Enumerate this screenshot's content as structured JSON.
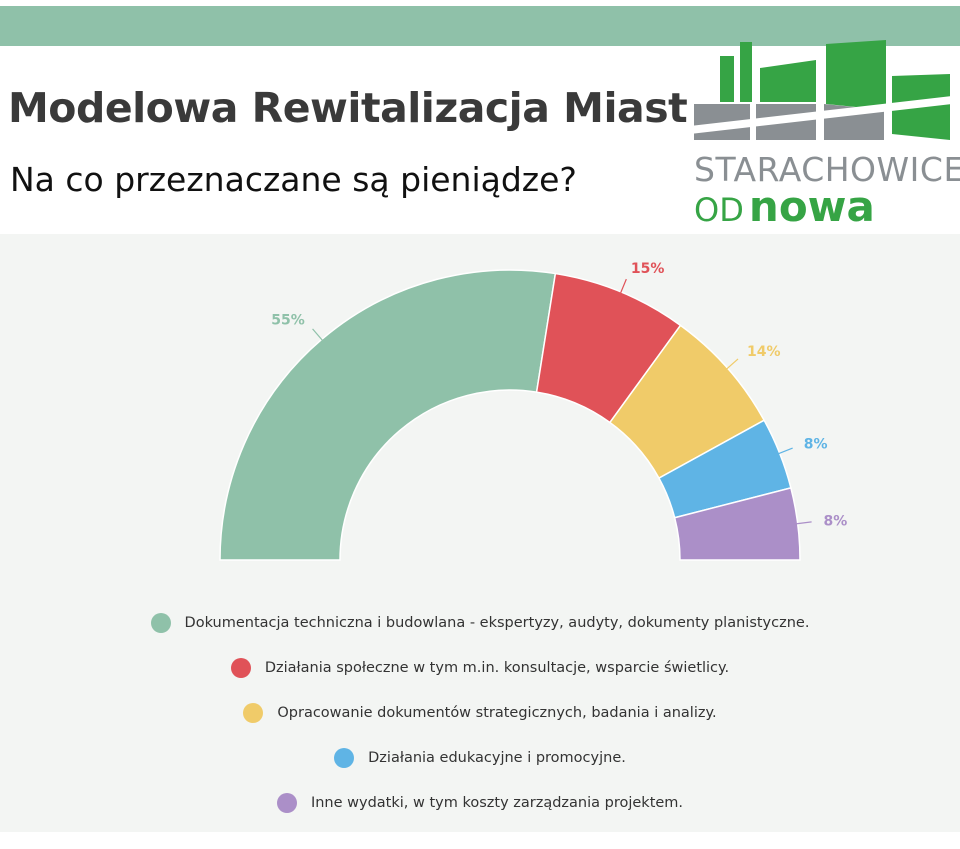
{
  "header": {
    "title": "Modelowa Rewitalizacja Miast",
    "subtitle": "Na co przeznaczane są pieniądze?",
    "logo": {
      "line1": "STARACHOWICE",
      "line2_a": "OD",
      "line2_b": "nowa"
    }
  },
  "colors": {
    "top_band": "#8fc1a9",
    "logo_gray": "#8a8f93",
    "logo_green": "#36a445"
  },
  "chart_data": {
    "type": "pie",
    "variant": "half-donut",
    "categories": [
      "Dokumentacja techniczna i budowlana - ekspertyzy, audyty, dokumenty planistyczne.",
      "Działania społeczne w tym m.in. konsultacje, wsparcie świetlicy.",
      "Opracowanie dokumentów strategicznych, badania i analizy.",
      "Działania edukacyjne i promocyjne.",
      "Inne wydatki, w tym koszty zarządzania projektem."
    ],
    "values": [
      55,
      15,
      14,
      8,
      8
    ],
    "value_labels": [
      "55%",
      "15%",
      "14%",
      "8%",
      "8%"
    ],
    "colors": [
      "#8fc1a9",
      "#e05258",
      "#f0cb69",
      "#5fb4e5",
      "#ab8fc8"
    ],
    "legend_position": "bottom"
  }
}
